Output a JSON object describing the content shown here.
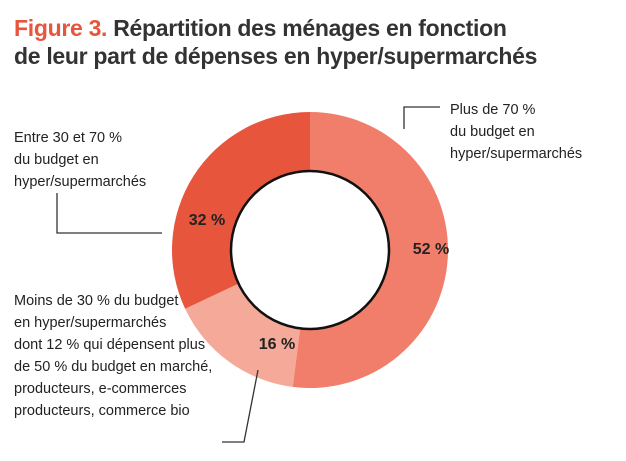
{
  "title": {
    "figure": "Figure 3.",
    "line1": "Répartition des ménages en fonction",
    "line2": "de leur part de dépenses en hyper/supermarchés"
  },
  "chart_data": {
    "type": "pie",
    "title": "Répartition des ménages en fonction de leur part de dépenses en hyper/supermarchés",
    "series": [
      {
        "name": "Plus de 70 % du budget en hyper/supermarchés",
        "label": "Plus de 70 %\ndu budget en\nhyper/supermarchés",
        "value": 52,
        "value_label": "52 %",
        "color": "#f07e6a"
      },
      {
        "name": "Moins de 30 % du budget en hyper/supermarchés",
        "label": "Moins de 30 % du budget\nen hyper/supermarchés\ndont 12 % qui dépensent plus\nde 50 % du budget en marché,\nproducteurs,  e-commerces\nproducteurs, commerce bio",
        "value": 16,
        "value_label": "16 %",
        "color": "#f5a999"
      },
      {
        "name": "Entre 30 et 70 % du budget en hyper/supermarchés",
        "label": "Entre 30 et 70 %\ndu budget en\nhyper/supermarchés",
        "value": 32,
        "value_label": "32 %",
        "color": "#e8553d"
      }
    ],
    "start_angle_deg": 0,
    "direction": "clockwise",
    "donut": true
  }
}
